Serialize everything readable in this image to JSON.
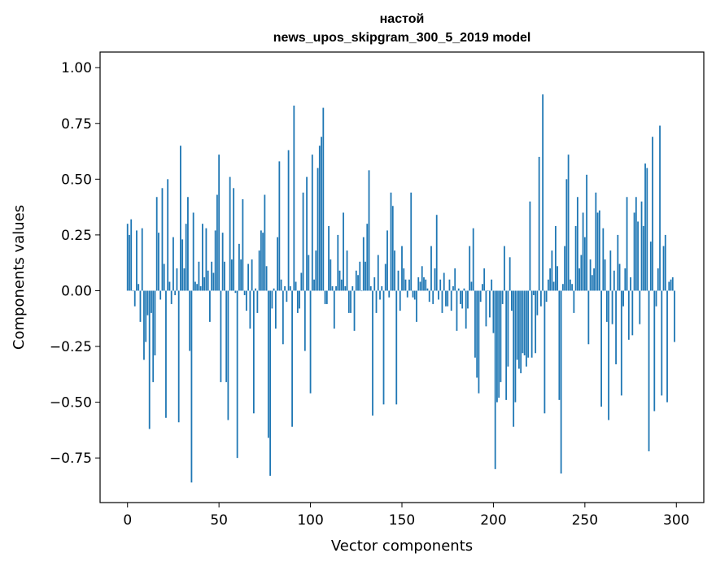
{
  "chart_data": {
    "type": "bar",
    "title_line1": "настой",
    "title_line2": "news_upos_skipgram_300_5_2019 model",
    "xlabel": "Vector components",
    "ylabel": "Components values",
    "xlim": [
      -15,
      315
    ],
    "ylim": [
      -0.95,
      1.07
    ],
    "xticks": [
      0,
      50,
      100,
      150,
      200,
      250,
      300
    ],
    "xtick_labels": [
      "0",
      "50",
      "100",
      "150",
      "200",
      "250",
      "300"
    ],
    "yticks": [
      1.0,
      0.75,
      0.5,
      0.25,
      0.0,
      -0.25,
      -0.5,
      -0.75
    ],
    "ytick_labels": [
      "1.00",
      "0.75",
      "0.50",
      "0.25",
      "0.00",
      "−0.25",
      "−0.50",
      "−0.75"
    ],
    "bar_color": "#1f77b4",
    "x": "component index 0..299",
    "values": [
      0.3,
      0.25,
      0.32,
      0.0,
      -0.07,
      0.27,
      0.03,
      -0.14,
      0.28,
      -0.31,
      -0.23,
      -0.11,
      -0.62,
      -0.1,
      -0.41,
      -0.29,
      0.42,
      0.26,
      -0.04,
      0.46,
      0.12,
      -0.57,
      0.5,
      0.04,
      -0.06,
      0.24,
      -0.02,
      0.1,
      -0.59,
      0.65,
      0.23,
      0.1,
      0.3,
      0.42,
      -0.27,
      -0.86,
      0.35,
      0.04,
      0.03,
      0.13,
      0.02,
      0.3,
      0.06,
      0.28,
      0.09,
      -0.14,
      0.13,
      0.08,
      0.27,
      0.43,
      0.61,
      -0.41,
      0.26,
      0.13,
      -0.41,
      -0.58,
      0.51,
      0.14,
      0.46,
      -0.01,
      -0.75,
      0.21,
      0.14,
      0.41,
      -0.02,
      -0.09,
      0.12,
      -0.17,
      0.14,
      -0.55,
      0.01,
      -0.1,
      0.18,
      0.27,
      0.26,
      0.43,
      0.11,
      -0.66,
      -0.83,
      -0.08,
      0.01,
      -0.17,
      0.24,
      0.58,
      0.05,
      -0.24,
      0.02,
      -0.05,
      0.63,
      0.02,
      -0.61,
      0.83,
      0.04,
      -0.1,
      -0.08,
      0.08,
      0.44,
      -0.27,
      0.51,
      0.16,
      -0.46,
      0.61,
      0.05,
      0.18,
      0.55,
      0.65,
      0.69,
      0.82,
      -0.06,
      -0.06,
      0.29,
      0.14,
      0.02,
      -0.17,
      0.02,
      0.25,
      0.09,
      0.05,
      0.35,
      0.02,
      0.18,
      -0.1,
      -0.1,
      0.02,
      -0.18,
      0.09,
      0.07,
      0.13,
      0.0,
      0.24,
      0.13,
      0.3,
      0.54,
      0.02,
      -0.56,
      0.06,
      -0.1,
      0.16,
      -0.04,
      0.02,
      -0.51,
      0.12,
      0.27,
      -0.03,
      0.44,
      0.38,
      0.18,
      -0.51,
      0.09,
      -0.09,
      0.2,
      0.1,
      0.05,
      -0.03,
      0.05,
      0.44,
      -0.03,
      -0.04,
      -0.14,
      0.06,
      0.04,
      0.11,
      0.06,
      0.05,
      0.01,
      -0.05,
      0.2,
      -0.06,
      0.1,
      0.34,
      -0.04,
      0.05,
      -0.1,
      0.08,
      -0.07,
      -0.07,
      0.05,
      -0.09,
      0.02,
      0.1,
      -0.18,
      0.01,
      -0.06,
      -0.08,
      0.01,
      -0.17,
      -0.08,
      0.2,
      0.04,
      0.28,
      -0.3,
      -0.39,
      -0.46,
      -0.05,
      0.03,
      0.1,
      -0.16,
      0.0,
      -0.12,
      0.05,
      -0.19,
      -0.8,
      -0.5,
      -0.48,
      -0.41,
      -0.06,
      0.2,
      -0.49,
      -0.34,
      0.15,
      -0.09,
      -0.61,
      -0.5,
      -0.31,
      -0.35,
      -0.37,
      -0.28,
      -0.29,
      -0.34,
      -0.3,
      0.4,
      -0.3,
      -0.02,
      -0.28,
      -0.11,
      0.6,
      -0.07,
      0.88,
      -0.55,
      -0.05,
      0.05,
      0.1,
      0.18,
      0.04,
      0.29,
      0.11,
      -0.49,
      -0.82,
      0.03,
      0.2,
      0.5,
      0.61,
      0.05,
      0.03,
      -0.1,
      0.29,
      0.42,
      0.1,
      0.16,
      0.35,
      0.24,
      0.52,
      -0.24,
      0.14,
      0.07,
      0.1,
      0.44,
      0.35,
      0.36,
      -0.52,
      0.28,
      0.14,
      -0.14,
      -0.58,
      0.18,
      -0.15,
      0.09,
      -0.33,
      0.25,
      0.12,
      -0.47,
      -0.07,
      0.1,
      0.42,
      -0.22,
      0.06,
      -0.2,
      0.35,
      0.42,
      0.31,
      -0.15,
      0.4,
      0.29,
      0.57,
      0.55,
      -0.72,
      0.22,
      0.69,
      -0.54,
      -0.07,
      0.1,
      0.74,
      -0.47,
      0.2,
      0.25,
      -0.5,
      0.04,
      0.05,
      0.06,
      -0.23
    ]
  }
}
